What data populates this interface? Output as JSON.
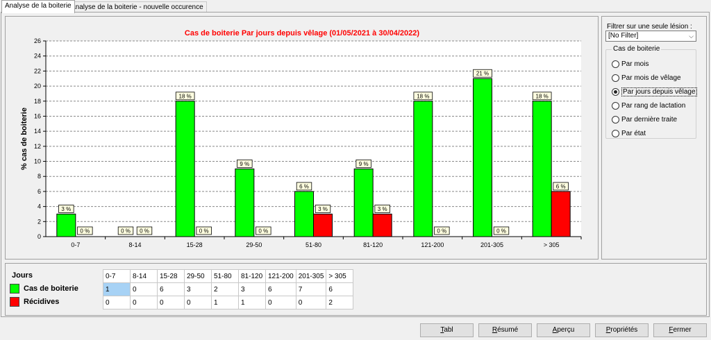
{
  "tabs": [
    {
      "label": "Analyse de la boiterie"
    },
    {
      "label": "Analyse de la boiterie - nouvelle occurence"
    }
  ],
  "colors": {
    "cas": "#00ff00",
    "recidive": "#ff0000",
    "title": "#ff0000",
    "selected_cell": "#a7d2f5"
  },
  "filter": {
    "label": "Filtrer sur une seule lésion :",
    "value": "[No Filter]",
    "group_title": "Cas de boiterie",
    "options": [
      "Par mois",
      "Par mois de vêlage",
      "Par jours depuis vêlage",
      "Par rang de lactation",
      "Par dernière traite",
      "Par état"
    ],
    "selected": "Par jours depuis vêlage"
  },
  "chart_data": {
    "type": "bar",
    "title": "Cas de boiterie Par jours depuis vêlage (01/05/2021 à 30/04/2022)",
    "xlabel": "",
    "ylabel": "% cas de boiterie",
    "ylim": [
      0,
      26
    ],
    "yticks": [
      0,
      2,
      4,
      6,
      8,
      10,
      12,
      14,
      16,
      18,
      20,
      22,
      24,
      26
    ],
    "grid": true,
    "categories": [
      "0-7",
      "8-14",
      "15-28",
      "29-50",
      "51-80",
      "81-120",
      "121-200",
      "201-305",
      "> 305"
    ],
    "series": [
      {
        "name": "Cas de boiterie",
        "values": [
          3,
          0,
          18,
          9,
          6,
          9,
          18,
          21,
          18
        ],
        "labels": [
          "3 %",
          "0 %",
          "18 %",
          "9 %",
          "6 %",
          "9 %",
          "18 %",
          "21 %",
          "18 %"
        ]
      },
      {
        "name": "Récidives",
        "values": [
          0,
          0,
          0,
          0,
          3,
          3,
          0,
          0,
          6
        ],
        "labels": [
          "0 %",
          "0 %",
          "0 %",
          "0 %",
          "3 %",
          "3 %",
          "0 %",
          "0 %",
          "6 %"
        ]
      }
    ]
  },
  "legend": {
    "title": "Jours",
    "items": [
      "Cas de boiterie",
      "Récidives"
    ]
  },
  "table": {
    "headers": [
      "0-7",
      "8-14",
      "15-28",
      "29-50",
      "51-80",
      "81-120",
      "121-200",
      "201-305",
      "> 305"
    ],
    "rows": [
      [
        "1",
        "0",
        "6",
        "3",
        "2",
        "3",
        "6",
        "7",
        "6"
      ],
      [
        "0",
        "0",
        "0",
        "0",
        "1",
        "1",
        "0",
        "0",
        "2"
      ]
    ]
  },
  "buttons": {
    "tabl": {
      "ul": "T",
      "rest": "abl"
    },
    "resume": {
      "ul": "R",
      "rest": "ésumé"
    },
    "apercu": {
      "ul": "A",
      "rest": "perçu"
    },
    "proprietes": {
      "ul": "P",
      "rest": "ropriétés"
    },
    "fermer": {
      "ul": "F",
      "rest": "ermer"
    }
  }
}
